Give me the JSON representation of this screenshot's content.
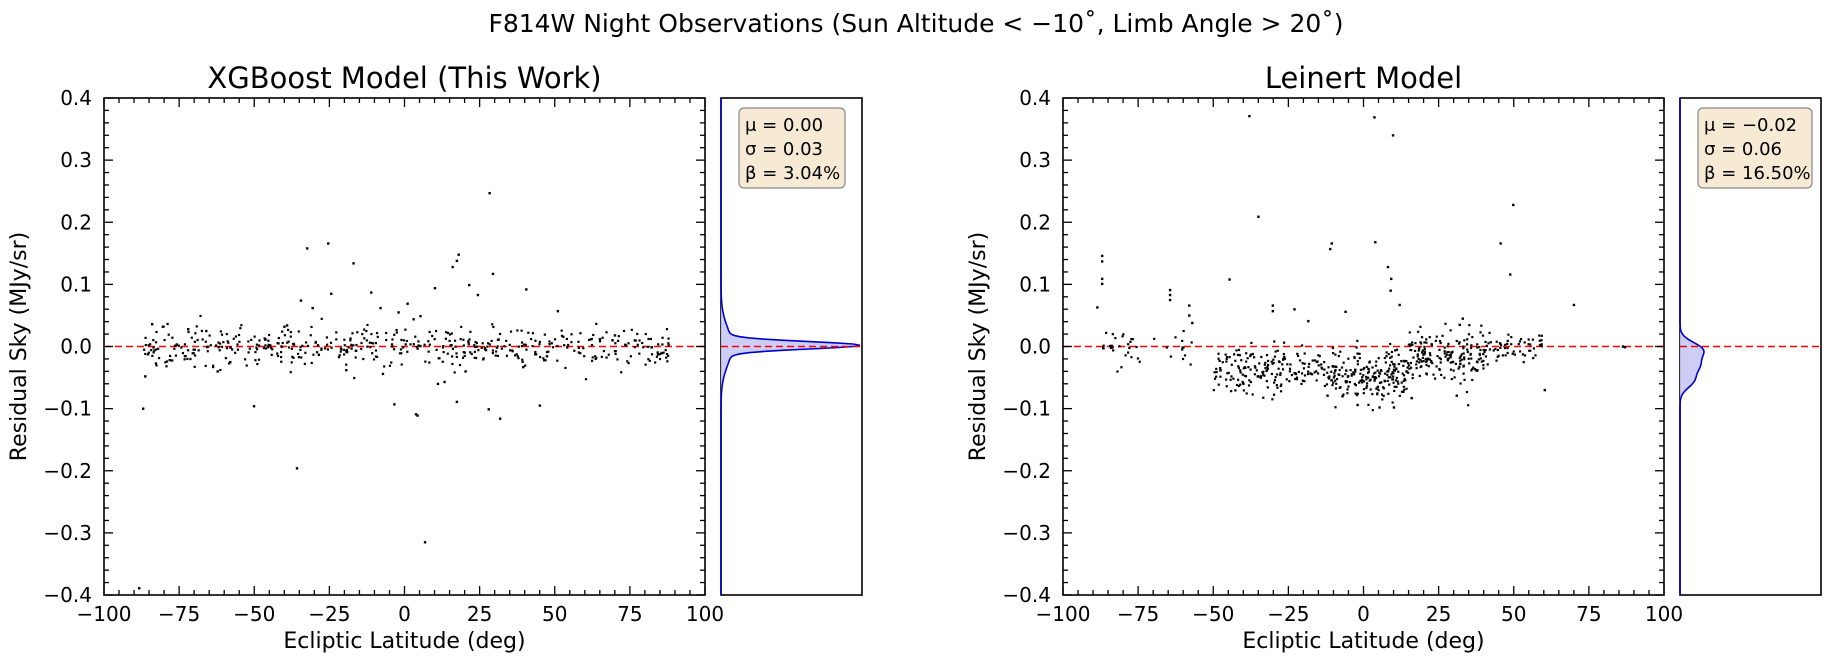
{
  "figure_title": "F814W Night Observations (Sun Altitude < −10˚, Limb Angle > 20˚)",
  "colors": {
    "points": "#000000",
    "zero_line": "#ff0000",
    "kde_line": "#0000cc",
    "kde_fill": "#c8c8f5",
    "stats_box": "#f6ead5",
    "stats_border": "#888888"
  },
  "chart_data": [
    {
      "type": "scatter",
      "title": "XGBoost Model (This Work)",
      "xlabel": "Ecliptic Latitude (deg)",
      "ylabel": "Residual Sky (MJy/sr)",
      "xlim": [
        -100,
        100
      ],
      "ylim": [
        -0.4,
        0.4
      ],
      "xticks": [
        -100,
        -75,
        -50,
        -25,
        0,
        25,
        50,
        75,
        100
      ],
      "xtick_labels": [
        "−100",
        "−75",
        "−50",
        "−25",
        "0",
        "25",
        "50",
        "75",
        "100"
      ],
      "yticks": [
        -0.4,
        -0.3,
        -0.2,
        -0.1,
        0.0,
        0.1,
        0.2,
        0.3,
        0.4
      ],
      "ytick_labels": [
        "−0.4",
        "−0.3",
        "−0.2",
        "−0.1",
        "0.0",
        "0.1",
        "0.2",
        "0.3",
        "0.4"
      ],
      "reference_line_y": 0.0,
      "cluster": {
        "description": "bulk of points",
        "x_range": [
          -87,
          88
        ],
        "center_y": 0.0,
        "spread_y": 0.015,
        "count": 500
      },
      "points": [
        [
          -32.4,
          0.158
        ],
        [
          -25.4,
          0.166
        ],
        [
          -17.0,
          0.134
        ],
        [
          -24.4,
          0.085
        ],
        [
          -34.5,
          0.074
        ],
        [
          -39.1,
          0.034
        ],
        [
          -30.6,
          0.062
        ],
        [
          28.3,
          0.247
        ],
        [
          18.0,
          0.148
        ],
        [
          17.4,
          0.138
        ],
        [
          16.0,
          0.128
        ],
        [
          29.4,
          0.117
        ],
        [
          40.5,
          0.092
        ],
        [
          21.5,
          0.099
        ],
        [
          24.4,
          0.083
        ],
        [
          10.1,
          0.094
        ],
        [
          -11.1,
          0.087
        ],
        [
          1.0,
          0.069
        ],
        [
          5.3,
          0.049
        ],
        [
          3.0,
          0.044
        ],
        [
          -2.0,
          0.055
        ],
        [
          -8.0,
          0.062
        ],
        [
          -86.3,
          -0.048
        ],
        [
          -87.0,
          -0.1
        ],
        [
          -50.1,
          -0.096
        ],
        [
          -62.2,
          -0.04
        ],
        [
          -35.8,
          -0.196
        ],
        [
          6.8,
          -0.315
        ],
        [
          -3.4,
          -0.093
        ],
        [
          3.8,
          -0.109
        ],
        [
          4.3,
          -0.111
        ],
        [
          11.1,
          -0.06
        ],
        [
          13.3,
          -0.057
        ],
        [
          17.4,
          -0.089
        ],
        [
          28.0,
          -0.101
        ],
        [
          31.8,
          -0.116
        ],
        [
          45.0,
          -0.095
        ],
        [
          -19.4,
          -0.038
        ],
        [
          -7.2,
          -0.044
        ],
        [
          20.3,
          -0.04
        ],
        [
          39.5,
          -0.033
        ],
        [
          -88.3,
          -0.389
        ],
        [
          51.0,
          0.057
        ],
        [
          -84.0,
          0.036
        ],
        [
          -72.0,
          0.028
        ],
        [
          -66.0,
          0.025
        ],
        [
          -58.0,
          -0.025
        ],
        [
          70.0,
          0.018
        ],
        [
          65.0,
          0.012
        ],
        [
          -40.0,
          0.032
        ]
      ],
      "marginal": {
        "type": "kde",
        "orientation": "horizontal",
        "components": [
          {
            "weight": 0.7,
            "mu": 0.002,
            "sigma": 0.006
          },
          {
            "weight": 0.3,
            "mu": 0.0,
            "sigma": 0.03
          }
        ],
        "stats": {
          "mu": "μ = 0.00",
          "sigma": "σ = 0.03",
          "beta": "β = 3.04%"
        }
      }
    },
    {
      "type": "scatter",
      "title": "Leinert Model",
      "xlabel": "Ecliptic Latitude (deg)",
      "ylabel": "Residual Sky (MJy/sr)",
      "xlim": [
        -100,
        100
      ],
      "ylim": [
        -0.4,
        0.4
      ],
      "xticks": [
        -100,
        -75,
        -50,
        -25,
        0,
        25,
        50,
        75,
        100
      ],
      "xtick_labels": [
        "−100",
        "−75",
        "−50",
        "−25",
        "0",
        "25",
        "50",
        "75",
        "100"
      ],
      "yticks": [
        -0.4,
        -0.3,
        -0.2,
        -0.1,
        0.0,
        0.1,
        0.2,
        0.3,
        0.4
      ],
      "ytick_labels": [
        "−0.4",
        "−0.3",
        "−0.2",
        "−0.1",
        "0.0",
        "0.1",
        "0.2",
        "0.3",
        "0.4"
      ],
      "reference_line_y": 0.0,
      "clusters": [
        {
          "x_range": [
            -87,
            -55
          ],
          "center_y": 0.0,
          "spread_y": 0.015,
          "count": 40
        },
        {
          "x_range": [
            -50,
            -10
          ],
          "center_y": -0.035,
          "spread_y": 0.018,
          "count": 200
        },
        {
          "x_range": [
            -10,
            15
          ],
          "center_y": -0.045,
          "spread_y": 0.02,
          "count": 200
        },
        {
          "x_range": [
            15,
            40
          ],
          "center_y": -0.015,
          "spread_y": 0.02,
          "count": 180
        },
        {
          "x_range": [
            40,
            60
          ],
          "center_y": 0.0,
          "spread_y": 0.012,
          "count": 60
        }
      ],
      "points": [
        [
          -38.0,
          0.371
        ],
        [
          3.6,
          0.369
        ],
        [
          9.8,
          0.34
        ],
        [
          -35.0,
          0.209
        ],
        [
          49.8,
          0.228
        ],
        [
          -11.1,
          0.157
        ],
        [
          -10.6,
          0.166
        ],
        [
          3.9,
          0.168
        ],
        [
          45.6,
          0.166
        ],
        [
          -87.0,
          0.146
        ],
        [
          -87.0,
          0.137
        ],
        [
          -87.0,
          0.109
        ],
        [
          -87.0,
          0.101
        ],
        [
          -88.6,
          0.063
        ],
        [
          8.1,
          0.128
        ],
        [
          9.2,
          0.109
        ],
        [
          9.0,
          0.09
        ],
        [
          48.8,
          0.116
        ],
        [
          -44.6,
          0.108
        ],
        [
          -30.2,
          0.066
        ],
        [
          -30.2,
          0.057
        ],
        [
          -23.0,
          0.06
        ],
        [
          -18.4,
          0.041
        ],
        [
          -64.4,
          0.091
        ],
        [
          -64.4,
          0.083
        ],
        [
          -64.4,
          0.075
        ],
        [
          -58.0,
          0.066
        ],
        [
          -58.0,
          0.05
        ],
        [
          -57.0,
          0.038
        ],
        [
          -6.0,
          0.056
        ],
        [
          12.0,
          0.067
        ],
        [
          70.0,
          0.067
        ],
        [
          -2.0,
          -0.094
        ],
        [
          5.3,
          -0.098
        ],
        [
          10.1,
          -0.098
        ],
        [
          16.0,
          -0.083
        ],
        [
          31.0,
          -0.079
        ],
        [
          60.3,
          -0.07
        ],
        [
          -7.0,
          -0.08
        ],
        [
          -12.0,
          -0.079
        ],
        [
          86.3,
          0.0
        ],
        [
          87.0,
          -0.001
        ],
        [
          32.0,
          0.035
        ],
        [
          33.0,
          0.045
        ]
      ],
      "marginal": {
        "type": "kde",
        "orientation": "horizontal",
        "components": [
          {
            "weight": 0.42,
            "mu": -0.005,
            "sigma": 0.012
          },
          {
            "weight": 0.33,
            "mu": -0.03,
            "sigma": 0.012
          },
          {
            "weight": 0.25,
            "mu": -0.055,
            "sigma": 0.012
          }
        ],
        "stats": {
          "mu": "μ = −0.02",
          "sigma": "σ = 0.06",
          "beta": "β = 16.50%"
        }
      }
    }
  ]
}
